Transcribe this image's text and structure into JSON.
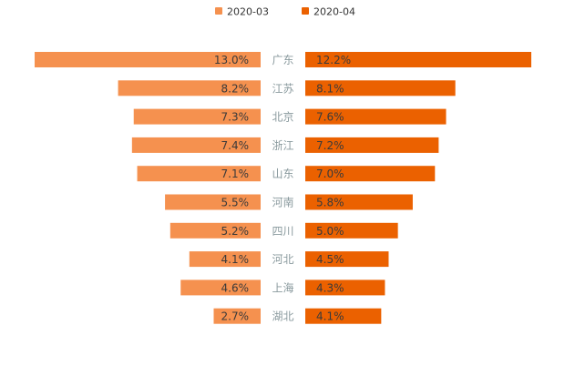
{
  "chart_data": {
    "type": "bar",
    "orientation": "butterfly-horizontal",
    "categories": [
      "广东",
      "江苏",
      "北京",
      "浙江",
      "山东",
      "河南",
      "四川",
      "河北",
      "上海",
      "湖北"
    ],
    "series": [
      {
        "name": "2020-03",
        "color": "#f5914f",
        "values": [
          13.0,
          8.2,
          7.3,
          7.4,
          7.1,
          5.5,
          5.2,
          4.1,
          4.6,
          2.7
        ],
        "labels": [
          "13.0%",
          "8.2%",
          "7.3%",
          "7.4%",
          "7.1%",
          "5.5%",
          "5.2%",
          "4.1%",
          "4.6%",
          "2.7%"
        ]
      },
      {
        "name": "2020-04",
        "color": "#eb6100",
        "values": [
          12.2,
          8.1,
          7.6,
          7.2,
          7.0,
          5.8,
          5.0,
          4.5,
          4.3,
          4.1
        ],
        "labels": [
          "12.2%",
          "8.1%",
          "7.6%",
          "7.2%",
          "7.0%",
          "5.8%",
          "5.0%",
          "4.5%",
          "4.3%",
          "4.1%"
        ]
      }
    ],
    "unit": "%",
    "legend": "top-center",
    "grid": false
  }
}
